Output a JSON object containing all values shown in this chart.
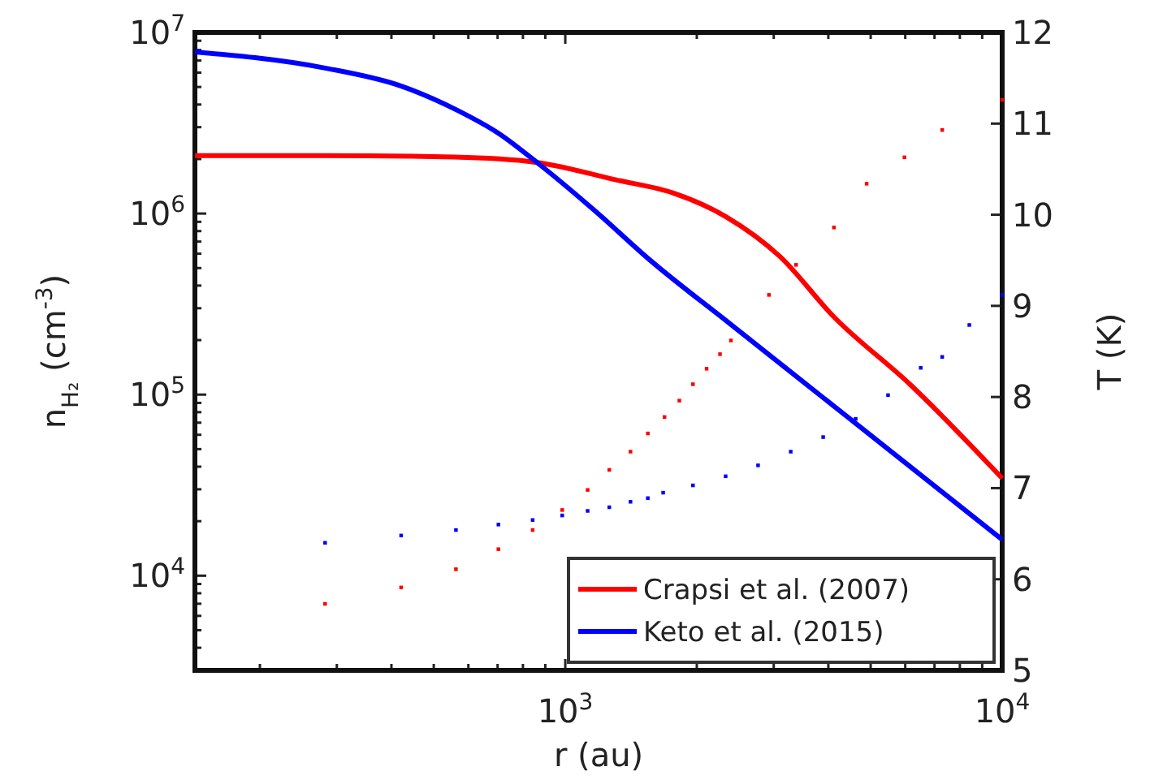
{
  "chart_data": {
    "type": "line",
    "xlabel": "r (au)",
    "ylabel": "n$_{H₂}$ (cm$^{-3}$)",
    "y2label": "T (K)",
    "log": "xy",
    "xlim": [
      142,
      10000
    ],
    "ylim": [
      3000,
      10000000
    ],
    "y2lim": [
      5,
      12
    ],
    "xticks": [
      {
        "value": 200,
        "label": null
      },
      {
        "value": 300,
        "label": null
      },
      {
        "value": 400,
        "label": null
      },
      {
        "value": 500,
        "label": null
      },
      {
        "value": 600,
        "label": null
      },
      {
        "value": 700,
        "label": null
      },
      {
        "value": 800,
        "label": null
      },
      {
        "value": 900,
        "label": null
      },
      {
        "value": 1000,
        "label": "10$^{3}$"
      },
      {
        "value": 2000,
        "label": null
      },
      {
        "value": 3000,
        "label": null
      },
      {
        "value": 4000,
        "label": null
      },
      {
        "value": 5000,
        "label": null
      },
      {
        "value": 6000,
        "label": null
      },
      {
        "value": 7000,
        "label": null
      },
      {
        "value": 8000,
        "label": null
      },
      {
        "value": 9000,
        "label": null
      },
      {
        "value": 10000,
        "label": "10$^{4}$"
      }
    ],
    "yticks": [
      {
        "value": 4000,
        "label": null
      },
      {
        "value": 5000,
        "label": null
      },
      {
        "value": 6000,
        "label": null
      },
      {
        "value": 7000,
        "label": null
      },
      {
        "value": 8000,
        "label": null
      },
      {
        "value": 9000,
        "label": null
      },
      {
        "value": 10000,
        "label": "10$^{4}$"
      },
      {
        "value": 20000,
        "label": null
      },
      {
        "value": 30000,
        "label": null
      },
      {
        "value": 40000,
        "label": null
      },
      {
        "value": 50000,
        "label": null
      },
      {
        "value": 60000,
        "label": null
      },
      {
        "value": 70000,
        "label": null
      },
      {
        "value": 80000,
        "label": null
      },
      {
        "value": 90000,
        "label": null
      },
      {
        "value": 100000,
        "label": "10$^{5}$"
      },
      {
        "value": 200000,
        "label": null
      },
      {
        "value": 300000,
        "label": null
      },
      {
        "value": 400000,
        "label": null
      },
      {
        "value": 500000,
        "label": null
      },
      {
        "value": 600000,
        "label": null
      },
      {
        "value": 700000,
        "label": null
      },
      {
        "value": 800000,
        "label": null
      },
      {
        "value": 900000,
        "label": null
      },
      {
        "value": 1000000,
        "label": "10$^{6}$"
      },
      {
        "value": 2000000,
        "label": null
      },
      {
        "value": 3000000,
        "label": null
      },
      {
        "value": 4000000,
        "label": null
      },
      {
        "value": 5000000,
        "label": null
      },
      {
        "value": 6000000,
        "label": null
      },
      {
        "value": 7000000,
        "label": null
      },
      {
        "value": 8000000,
        "label": null
      },
      {
        "value": 9000000,
        "label": null
      },
      {
        "value": 10000000,
        "label": "10$^{7}$"
      }
    ],
    "y2ticks": [
      5,
      6,
      7,
      8,
      9,
      10,
      11,
      12
    ],
    "legend": "bottom right",
    "grid": false,
    "line_style": "solid",
    "series": [
      {
        "name": "Crapsi et al. (2007)",
        "color": "#ff0000",
        "x": [
          142,
          280,
          557,
          855,
          1313,
          1762,
          2333,
          3097,
          4111,
          6150,
          10000
        ],
        "values": [
          2090000,
          2090000,
          2050000,
          1920000,
          1530000,
          1300000,
          960000,
          580000,
          270000,
          114000,
          34500
        ]
      },
      {
        "name": "Keto et al. (2015)",
        "color": "#0000ff",
        "x": [
          142,
          282,
          420,
          566,
          701,
          877,
          1172,
          1556,
          2388,
          4466,
          10000
        ],
        "values": [
          7800000,
          6360000,
          5070000,
          3720000,
          2790000,
          1850000,
          1030000,
          558000,
          245000,
          74000,
          15800
        ]
      },
      {
        "color": "#ff0000",
        "type": "scatter",
        "marker": "square",
        "axis": "y2",
        "x": [
          282,
          421,
          562,
          703,
          842,
          984,
          1125,
          1261,
          1410,
          1545,
          1687,
          1824,
          1960,
          2106,
          2260,
          2394,
          2925,
          3375,
          4120,
          4895,
          5975,
          7290,
          10000
        ],
        "values": [
          5.73,
          5.91,
          6.11,
          6.33,
          6.54,
          6.76,
          6.98,
          7.2,
          7.4,
          7.6,
          7.78,
          7.96,
          8.14,
          8.31,
          8.47,
          8.62,
          9.12,
          9.45,
          9.86,
          10.34,
          10.63,
          10.93,
          11.26
        ]
      },
      {
        "color": "#0000ff",
        "type": "scatter",
        "marker": "square",
        "axis": "y2",
        "x": [
          282,
          421,
          562,
          703,
          842,
          984,
          1125,
          1261,
          1410,
          1545,
          1675,
          1960,
          2328,
          2762,
          3281,
          3893,
          4620,
          5480,
          6510,
          7290,
          8410,
          10000
        ],
        "values": [
          6.4,
          6.48,
          6.54,
          6.6,
          6.65,
          6.7,
          6.75,
          6.79,
          6.85,
          6.89,
          6.95,
          7.03,
          7.13,
          7.25,
          7.4,
          7.56,
          7.76,
          8.02,
          8.32,
          8.44,
          8.79,
          9.12
        ]
      }
    ]
  }
}
